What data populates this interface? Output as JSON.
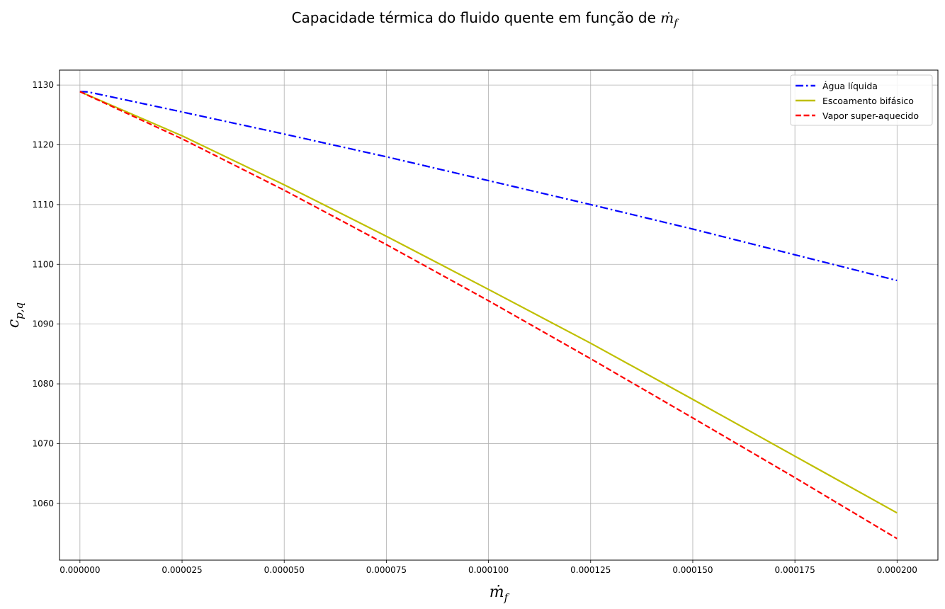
{
  "chart_data": {
    "type": "line",
    "title": "Capacidade térmica do fluido quente em função de",
    "title_symbol": "ṁ",
    "title_symbol_sub": "f",
    "xlabel": "ṁ",
    "xlabel_sub": "f",
    "ylabel": "c",
    "ylabel_sub": "p,q",
    "x_ticks": [
      "0.000000",
      "0.000025",
      "0.000050",
      "0.000075",
      "0.000100",
      "0.000125",
      "0.000150",
      "0.000175",
      "0.000200"
    ],
    "y_ticks": [
      "1060",
      "1070",
      "1080",
      "1090",
      "1100",
      "1110",
      "1120",
      "1130"
    ],
    "xlim": [
      -5e-06,
      0.00021
    ],
    "ylim": [
      1050.5,
      1132.5
    ],
    "grid": true,
    "legend_position": "top-right",
    "series": [
      {
        "name": "Água líquida",
        "color": "#0000ff",
        "style": "dashdot",
        "x": [
          0,
          2e-06,
          2.5e-05,
          5e-05,
          7.5e-05,
          0.0001,
          0.000125,
          0.00015,
          0.000175,
          0.0002
        ],
        "y": [
          1128.9,
          1128.85,
          1125.5,
          1121.8,
          1118.0,
          1114.0,
          1110.0,
          1105.9,
          1101.6,
          1097.3
        ]
      },
      {
        "name": "Escoamento bifásico",
        "color": "#bfbf00",
        "style": "solid",
        "x": [
          0,
          2.5e-05,
          5e-05,
          7.5e-05,
          0.0001,
          0.000125,
          0.00015,
          0.000175,
          0.0002
        ],
        "y": [
          1128.9,
          1121.5,
          1113.3,
          1104.7,
          1095.8,
          1086.8,
          1077.4,
          1067.9,
          1058.4
        ]
      },
      {
        "name": "Vapor super-aquecido",
        "color": "#ff0000",
        "style": "dashed",
        "x": [
          0,
          2.5e-05,
          5e-05,
          7.5e-05,
          0.0001,
          0.000125,
          0.00015,
          0.000175,
          0.0002
        ],
        "y": [
          1128.9,
          1121.0,
          1112.4,
          1103.3,
          1093.9,
          1084.2,
          1074.3,
          1064.3,
          1054.1
        ]
      }
    ]
  }
}
